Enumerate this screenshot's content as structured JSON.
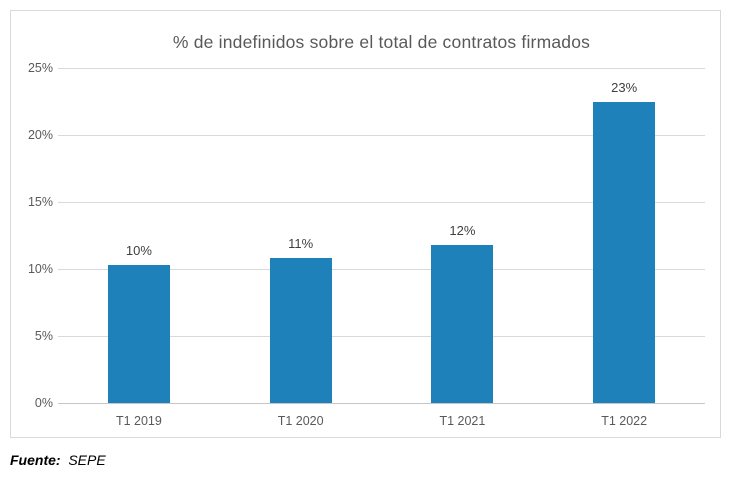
{
  "chart_data": {
    "type": "bar",
    "title": "% de indefinidos sobre el total de contratos firmados",
    "categories": [
      "T1 2019",
      "T1 2020",
      "T1 2021",
      "T1 2022"
    ],
    "values": [
      10.3,
      10.8,
      11.8,
      22.5
    ],
    "data_labels": [
      "10%",
      "11%",
      "12%",
      "23%"
    ],
    "ylim": [
      0,
      25
    ],
    "ytick_step": 5,
    "ytick_labels": [
      "0%",
      "5%",
      "10%",
      "15%",
      "20%",
      "25%"
    ],
    "grid": true,
    "legend": "none",
    "xlabel": "",
    "ylabel": ""
  },
  "footer": {
    "source_label": "Fuente:",
    "source_value": "SEPE"
  },
  "colors": {
    "bar": "#1F81BA",
    "grid": "#D9D9D9",
    "axis_line": "#C6C6C6",
    "border": "#D9D9D9",
    "title_text": "#595959",
    "tick_text": "#595959",
    "data_label_text": "#3F3F3F"
  }
}
